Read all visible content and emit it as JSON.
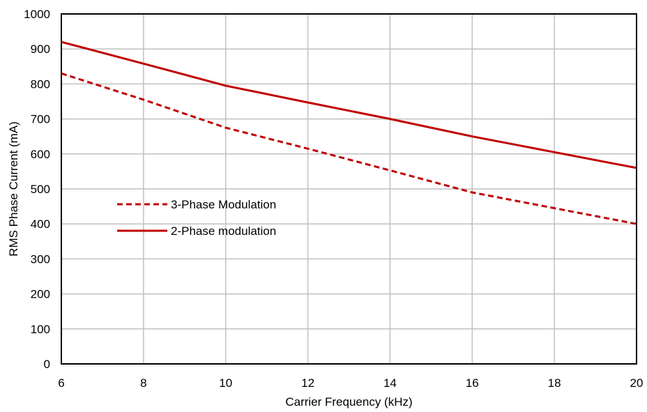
{
  "chart_data": {
    "type": "line",
    "title": "",
    "xlabel": "Carrier Frequency (kHz)",
    "ylabel": "RMS Phase Current (mA)",
    "xlim": [
      6,
      20
    ],
    "ylim": [
      0,
      1000
    ],
    "xticks": [
      6,
      8,
      10,
      12,
      14,
      16,
      18,
      20
    ],
    "yticks": [
      0,
      100,
      200,
      300,
      400,
      500,
      600,
      700,
      800,
      900,
      1000
    ],
    "grid": true,
    "legend_position": "center-left",
    "series": [
      {
        "name": "3-Phase Modulation",
        "style": "dashed",
        "color": "#c00000",
        "x": [
          6,
          8,
          10,
          12,
          14,
          16,
          18,
          20
        ],
        "y": [
          830,
          755,
          675,
          615,
          553,
          490,
          445,
          400
        ]
      },
      {
        "name": "2-Phase modulation",
        "style": "solid",
        "color": "#c00000",
        "x": [
          6,
          8,
          10,
          12,
          14,
          16,
          18,
          20
        ],
        "y": [
          920,
          858,
          795,
          747,
          700,
          650,
          605,
          560
        ]
      }
    ]
  },
  "colors": {
    "grid": "#c0c0c0",
    "axes": "#000000",
    "series": "#c00000"
  }
}
